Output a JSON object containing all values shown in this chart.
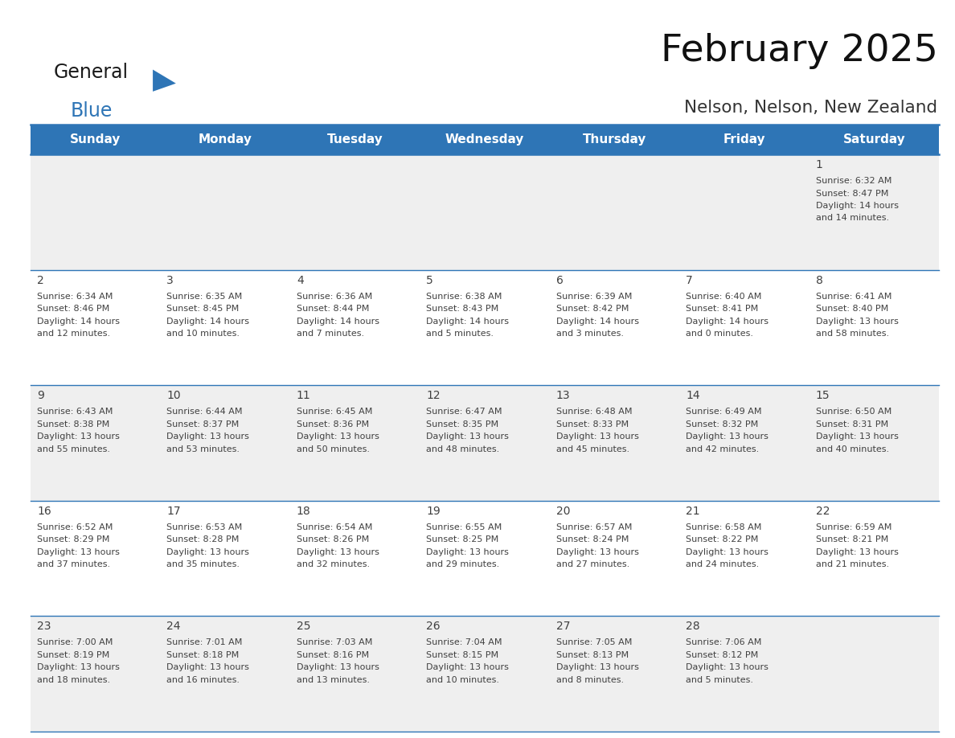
{
  "title": "February 2025",
  "subtitle": "Nelson, Nelson, New Zealand",
  "header_bg": "#2E75B6",
  "header_text_color": "#FFFFFF",
  "day_names": [
    "Sunday",
    "Monday",
    "Tuesday",
    "Wednesday",
    "Thursday",
    "Friday",
    "Saturday"
  ],
  "cell_bg_odd": "#EFEFEF",
  "cell_bg_even": "#FFFFFF",
  "divider_color": "#2E75B6",
  "text_color": "#404040",
  "day_num_color": "#404040",
  "calendar": [
    [
      null,
      null,
      null,
      null,
      null,
      null,
      {
        "day": 1,
        "sunrise": "6:32 AM",
        "sunset": "8:47 PM",
        "daylight": "14 hours and 14 minutes."
      }
    ],
    [
      {
        "day": 2,
        "sunrise": "6:34 AM",
        "sunset": "8:46 PM",
        "daylight": "14 hours and 12 minutes."
      },
      {
        "day": 3,
        "sunrise": "6:35 AM",
        "sunset": "8:45 PM",
        "daylight": "14 hours and 10 minutes."
      },
      {
        "day": 4,
        "sunrise": "6:36 AM",
        "sunset": "8:44 PM",
        "daylight": "14 hours and 7 minutes."
      },
      {
        "day": 5,
        "sunrise": "6:38 AM",
        "sunset": "8:43 PM",
        "daylight": "14 hours and 5 minutes."
      },
      {
        "day": 6,
        "sunrise": "6:39 AM",
        "sunset": "8:42 PM",
        "daylight": "14 hours and 3 minutes."
      },
      {
        "day": 7,
        "sunrise": "6:40 AM",
        "sunset": "8:41 PM",
        "daylight": "14 hours and 0 minutes."
      },
      {
        "day": 8,
        "sunrise": "6:41 AM",
        "sunset": "8:40 PM",
        "daylight": "13 hours and 58 minutes."
      }
    ],
    [
      {
        "day": 9,
        "sunrise": "6:43 AM",
        "sunset": "8:38 PM",
        "daylight": "13 hours and 55 minutes."
      },
      {
        "day": 10,
        "sunrise": "6:44 AM",
        "sunset": "8:37 PM",
        "daylight": "13 hours and 53 minutes."
      },
      {
        "day": 11,
        "sunrise": "6:45 AM",
        "sunset": "8:36 PM",
        "daylight": "13 hours and 50 minutes."
      },
      {
        "day": 12,
        "sunrise": "6:47 AM",
        "sunset": "8:35 PM",
        "daylight": "13 hours and 48 minutes."
      },
      {
        "day": 13,
        "sunrise": "6:48 AM",
        "sunset": "8:33 PM",
        "daylight": "13 hours and 45 minutes."
      },
      {
        "day": 14,
        "sunrise": "6:49 AM",
        "sunset": "8:32 PM",
        "daylight": "13 hours and 42 minutes."
      },
      {
        "day": 15,
        "sunrise": "6:50 AM",
        "sunset": "8:31 PM",
        "daylight": "13 hours and 40 minutes."
      }
    ],
    [
      {
        "day": 16,
        "sunrise": "6:52 AM",
        "sunset": "8:29 PM",
        "daylight": "13 hours and 37 minutes."
      },
      {
        "day": 17,
        "sunrise": "6:53 AM",
        "sunset": "8:28 PM",
        "daylight": "13 hours and 35 minutes."
      },
      {
        "day": 18,
        "sunrise": "6:54 AM",
        "sunset": "8:26 PM",
        "daylight": "13 hours and 32 minutes."
      },
      {
        "day": 19,
        "sunrise": "6:55 AM",
        "sunset": "8:25 PM",
        "daylight": "13 hours and 29 minutes."
      },
      {
        "day": 20,
        "sunrise": "6:57 AM",
        "sunset": "8:24 PM",
        "daylight": "13 hours and 27 minutes."
      },
      {
        "day": 21,
        "sunrise": "6:58 AM",
        "sunset": "8:22 PM",
        "daylight": "13 hours and 24 minutes."
      },
      {
        "day": 22,
        "sunrise": "6:59 AM",
        "sunset": "8:21 PM",
        "daylight": "13 hours and 21 minutes."
      }
    ],
    [
      {
        "day": 23,
        "sunrise": "7:00 AM",
        "sunset": "8:19 PM",
        "daylight": "13 hours and 18 minutes."
      },
      {
        "day": 24,
        "sunrise": "7:01 AM",
        "sunset": "8:18 PM",
        "daylight": "13 hours and 16 minutes."
      },
      {
        "day": 25,
        "sunrise": "7:03 AM",
        "sunset": "8:16 PM",
        "daylight": "13 hours and 13 minutes."
      },
      {
        "day": 26,
        "sunrise": "7:04 AM",
        "sunset": "8:15 PM",
        "daylight": "13 hours and 10 minutes."
      },
      {
        "day": 27,
        "sunrise": "7:05 AM",
        "sunset": "8:13 PM",
        "daylight": "13 hours and 8 minutes."
      },
      {
        "day": 28,
        "sunrise": "7:06 AM",
        "sunset": "8:12 PM",
        "daylight": "13 hours and 5 minutes."
      },
      null
    ]
  ],
  "logo_color_general": "#1a1a1a",
  "logo_color_blue": "#2E75B6",
  "logo_triangle_color": "#2E75B6",
  "fig_width": 11.88,
  "fig_height": 9.18,
  "dpi": 100
}
